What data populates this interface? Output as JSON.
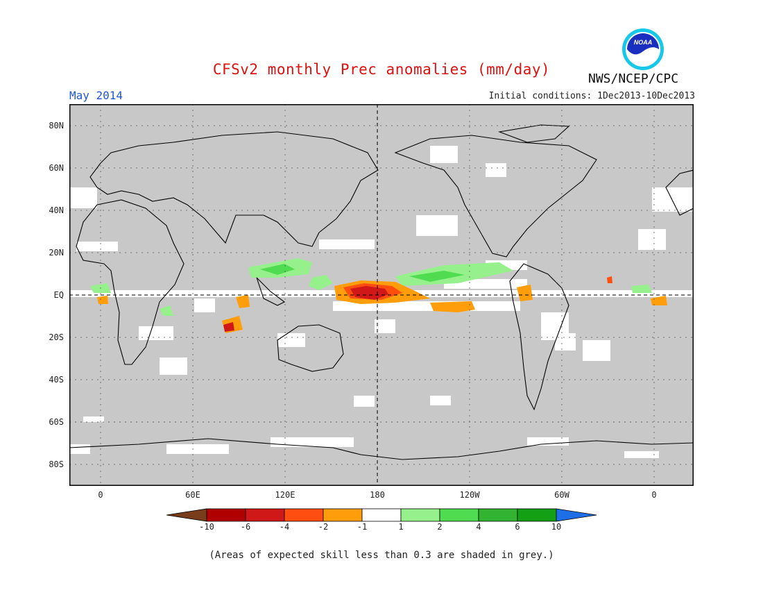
{
  "header": {
    "title": "CFSv2 monthly Prec anomalies (mm/day)",
    "month": "May 2014",
    "initial_conditions": "Initial conditions: 1Dec2013-10Dec2013",
    "agency": "NWS/NCEP/CPC",
    "logo_text": "NOAA"
  },
  "map": {
    "lat_labels": [
      "80N",
      "60N",
      "40N",
      "20N",
      "EQ",
      "20S",
      "40S",
      "60S",
      "80S"
    ],
    "lon_labels": [
      "0",
      "60E",
      "120E",
      "180",
      "120W",
      "60W",
      "0"
    ],
    "grey_color": "#c8c8c8",
    "land_outline_color": "#000000"
  },
  "colorbar": {
    "labels": [
      "-10",
      "-6",
      "-4",
      "-2",
      "-1",
      "1",
      "2",
      "4",
      "6",
      "10"
    ],
    "colors": [
      "#7a3d1c",
      "#b00000",
      "#d01818",
      "#ff4e10",
      "#ff9e0a",
      "#ffffff",
      "#96f08c",
      "#50dc50",
      "#32b432",
      "#14a014",
      "#1e6ee6"
    ]
  },
  "footnote": "(Areas of expected skill less than 0.3 are shaded in grey.)"
}
